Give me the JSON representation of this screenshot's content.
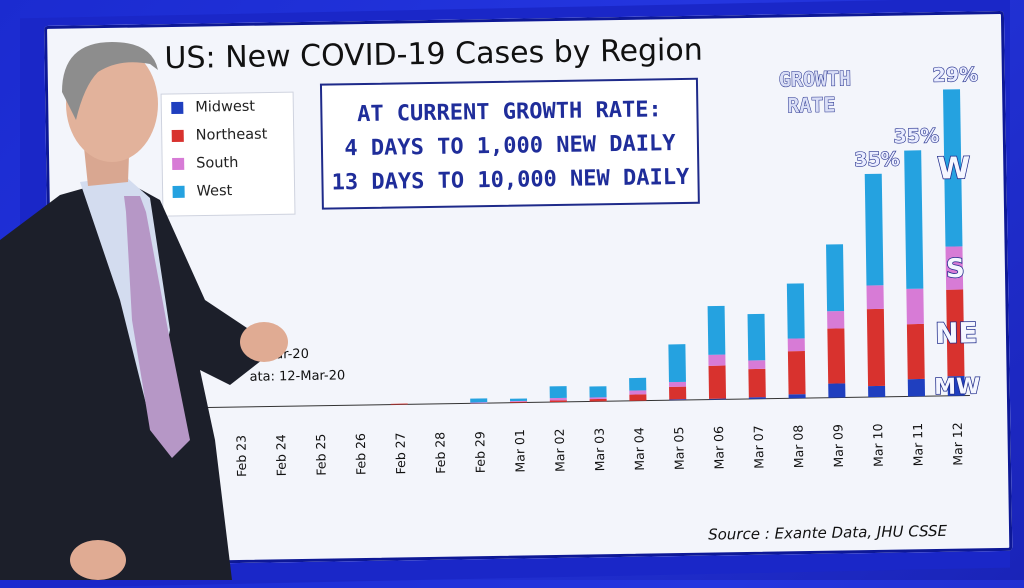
{
  "chart_data": {
    "type": "bar",
    "stacked": true,
    "title": "US: New COVID-19 Cases by Region",
    "categories": [
      "Feb 23",
      "Feb 24",
      "Feb 25",
      "Feb 26",
      "Feb 27",
      "Feb 28",
      "Feb 29",
      "Mar 01",
      "Mar 02",
      "Mar 03",
      "Mar 04",
      "Mar 05",
      "Mar 06",
      "Mar 07",
      "Mar 08",
      "Mar 09",
      "Mar 10",
      "Mar 11",
      "Mar 12"
    ],
    "series": [
      {
        "name": "Midwest",
        "color": "#1f3fbf",
        "values": [
          0,
          0,
          0,
          0,
          0,
          0,
          0,
          0,
          0,
          0,
          0,
          1,
          1,
          2,
          5,
          18,
          14,
          22,
          25
        ]
      },
      {
        "name": "Northeast",
        "color": "#d8322e",
        "values": [
          0,
          0,
          0,
          0,
          1,
          0,
          0,
          1,
          2,
          3,
          8,
          16,
          42,
          36,
          55,
          70,
          98,
          70,
          110
        ]
      },
      {
        "name": "South",
        "color": "#d77bd6",
        "values": [
          0,
          0,
          0,
          0,
          0,
          0,
          1,
          1,
          3,
          2,
          5,
          6,
          14,
          11,
          16,
          22,
          30,
          45,
          55
        ]
      },
      {
        "name": "West",
        "color": "#25a2e0",
        "values": [
          0,
          0,
          0,
          0,
          0,
          0,
          5,
          3,
          15,
          14,
          16,
          48,
          62,
          59,
          70,
          85,
          142,
          176,
          200
        ]
      }
    ],
    "ylim": [
      0,
      420
    ],
    "legend": [
      "Midwest",
      "Northeast",
      "South",
      "West"
    ],
    "legend_position": "top-left",
    "grid": false
  },
  "callout": {
    "line1": "AT CURRENT GROWTH RATE:",
    "line2": "4 DAYS TO 1,000 NEW DAILY",
    "line3": "13 DAYS TO 10,000 NEW DAILY"
  },
  "growth_label": {
    "line1": "GROWTH",
    "line2": "RATE"
  },
  "growth_rates": [
    {
      "category": "Mar 10",
      "value": "35%"
    },
    {
      "category": "Mar 11",
      "value": "35%"
    },
    {
      "category": "Mar 12",
      "value": "29%"
    }
  ],
  "region_labels": {
    "west": "W",
    "south": "S",
    "northeast": "NE",
    "midwest": "MW"
  },
  "partial_note": {
    "line1": "ar-20",
    "line2": "ata: 12-Mar-20"
  },
  "source": "Source : Exante Data, JHU CSSE"
}
